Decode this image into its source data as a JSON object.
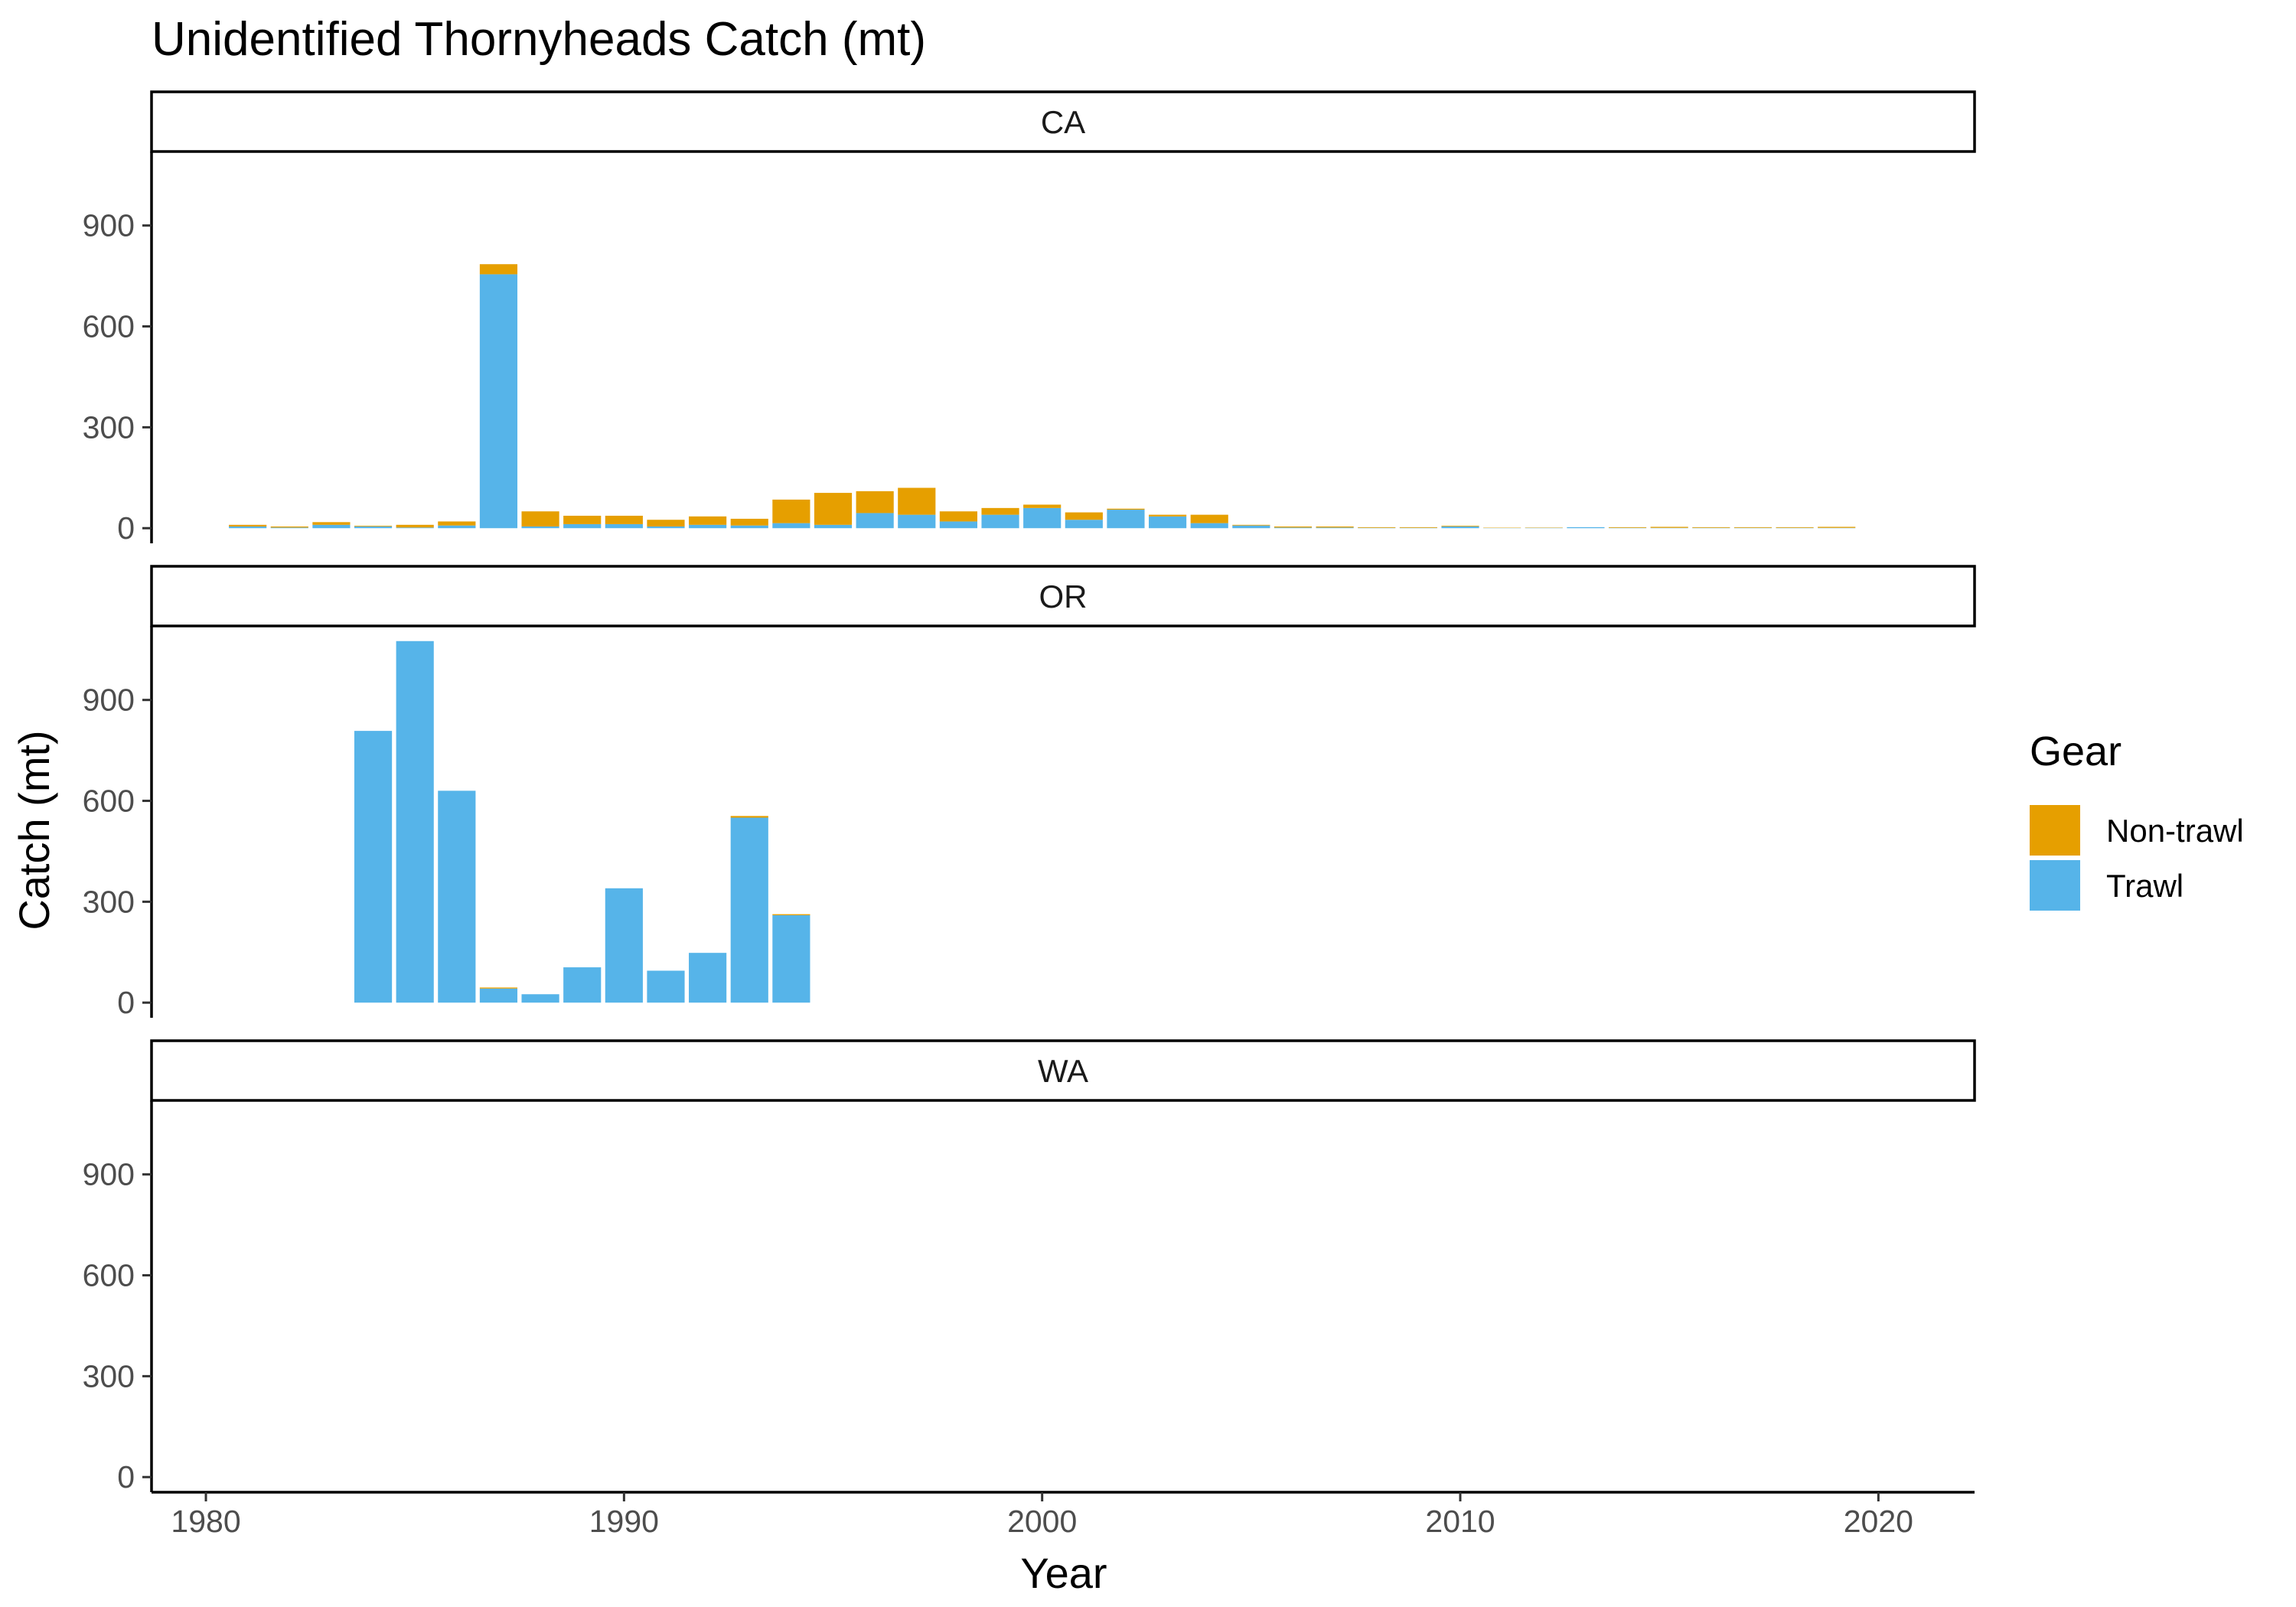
{
  "chart_data": {
    "type": "bar",
    "stacked": true,
    "title": "Unidentified Thornyheads Catch (mt)",
    "xlabel": "Year",
    "ylabel": "Catch (mt)",
    "xlim": [
      1978.7,
      2022.3
    ],
    "ylim": [
      -45,
      1120
    ],
    "x_ticks": [
      1980,
      1990,
      2000,
      2010,
      2020
    ],
    "y_ticks": [
      0,
      300,
      600,
      900
    ],
    "grid": false,
    "legend": {
      "title": "Gear",
      "position": "right",
      "entries": [
        {
          "name": "Non-trawl",
          "color": "#E69F00"
        },
        {
          "name": "Trawl",
          "color": "#56B4E9"
        }
      ]
    },
    "facets": [
      "CA",
      "OR",
      "WA"
    ],
    "panels": [
      {
        "facet": "CA",
        "years": [
          1981,
          1982,
          1983,
          1984,
          1985,
          1986,
          1987,
          1988,
          1989,
          1990,
          1991,
          1992,
          1993,
          1994,
          1995,
          1996,
          1997,
          1998,
          1999,
          2000,
          2001,
          2002,
          2003,
          2004,
          2005,
          2006,
          2007,
          2008,
          2009,
          2010,
          2011,
          2012,
          2013,
          2014,
          2015,
          2016,
          2017,
          2018,
          2019
        ],
        "series": [
          {
            "name": "Trawl",
            "values": [
              5,
              2,
              10,
              5,
              2,
              8,
              755,
              5,
              12,
              12,
              5,
              10,
              8,
              15,
              10,
              45,
              40,
              20,
              40,
              60,
              25,
              55,
              35,
              15,
              8,
              2,
              2,
              1,
              1,
              5,
              0.5,
              1,
              3,
              1,
              1,
              1,
              1,
              1,
              1
            ]
          },
          {
            "name": "Non-trawl",
            "values": [
              5,
              3,
              8,
              2,
              8,
              12,
              30,
              45,
              25,
              25,
              20,
              25,
              20,
              70,
              95,
              65,
              80,
              30,
              20,
              10,
              22,
              3,
              5,
              25,
              2,
              3,
              3,
              2,
              2,
              2,
              1,
              1,
              0,
              2,
              3,
              2,
              2,
              2,
              3
            ]
          }
        ]
      },
      {
        "facet": "OR",
        "years": [
          1984,
          1985,
          1986,
          1987,
          1988,
          1989,
          1990,
          1991,
          1992,
          1993,
          1994
        ],
        "series": [
          {
            "name": "Trawl",
            "values": [
              808,
              1075,
              630,
              42,
              25,
              105,
              340,
              95,
              148,
              550,
              260
            ]
          },
          {
            "name": "Non-trawl",
            "values": [
              0,
              0,
              0,
              3,
              0,
              0,
              0,
              0,
              0,
              5,
              3
            ]
          }
        ]
      },
      {
        "facet": "WA",
        "years": [],
        "series": [
          {
            "name": "Trawl",
            "values": []
          },
          {
            "name": "Non-trawl",
            "values": []
          }
        ]
      }
    ]
  }
}
